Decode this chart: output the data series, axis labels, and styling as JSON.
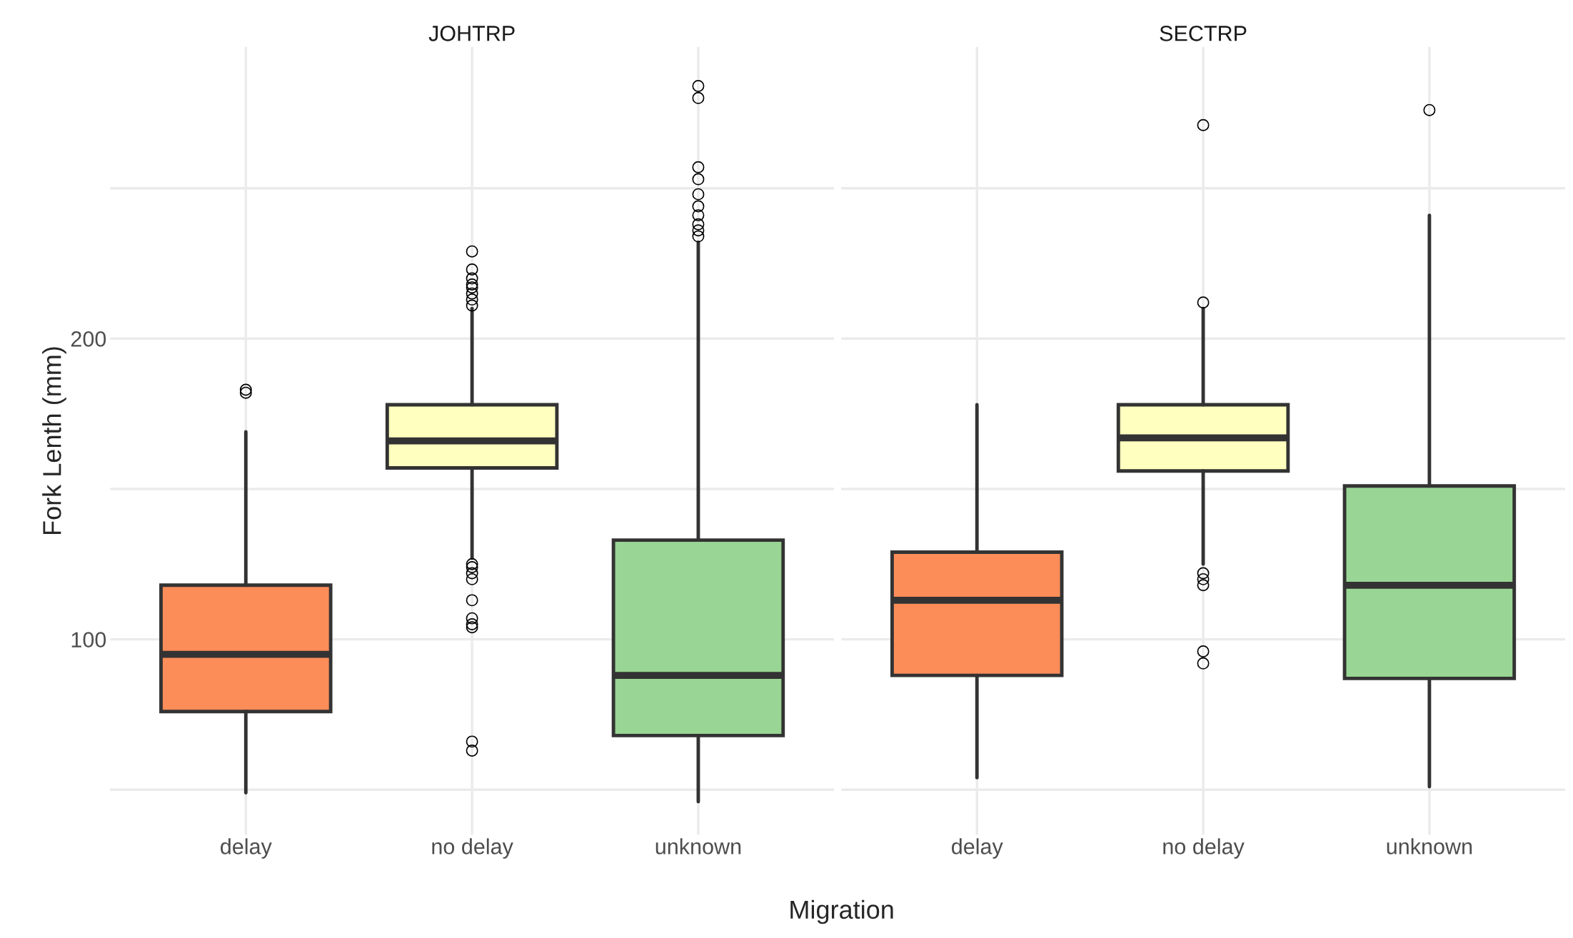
{
  "chart_data": [
    {
      "type": "box",
      "title": "JOHTRP",
      "xlabel": "Migration",
      "ylabel": "Fork Lenth (mm)",
      "categories": [
        "delay",
        "no delay",
        "unknown"
      ],
      "colors": [
        "#fc8d59",
        "#ffffbf",
        "#99d594"
      ],
      "boxes": [
        {
          "low": 49,
          "q1": 76,
          "median": 95,
          "q3": 118,
          "high": 169,
          "outliers": [
            183,
            182
          ]
        },
        {
          "low": 127,
          "q1": 157,
          "median": 166,
          "q3": 178,
          "high": 210,
          "outliers": [
            229,
            223,
            220,
            218,
            217,
            215,
            213,
            211,
            125,
            124,
            122,
            120,
            113,
            107,
            105,
            104,
            66,
            63
          ]
        },
        {
          "low": 46,
          "q1": 68,
          "median": 88,
          "q3": 133,
          "high": 232,
          "outliers": [
            284,
            280,
            257,
            253,
            248,
            244,
            241,
            238,
            236,
            234
          ]
        }
      ],
      "ylim": [
        35,
        297
      ],
      "yticks": [
        {
          "value": 50,
          "label": null
        },
        100,
        {
          "value": 150,
          "label": null
        },
        200,
        {
          "value": 250,
          "label": null
        }
      ],
      "grid": true
    },
    {
      "type": "box",
      "title": "SECTRP",
      "categories": [
        "delay",
        "no delay",
        "unknown"
      ],
      "colors": [
        "#fc8d59",
        "#ffffbf",
        "#99d594"
      ],
      "boxes": [
        {
          "low": 54,
          "q1": 88,
          "median": 113,
          "q3": 129,
          "high": 178
        },
        {
          "low": 125,
          "q1": 156,
          "median": 167,
          "q3": 178,
          "high": 210,
          "outliers": [
            271,
            212,
            122,
            120,
            118,
            96,
            92
          ]
        },
        {
          "low": 51,
          "q1": 87,
          "median": 118,
          "q3": 151,
          "high": 241,
          "outliers": [
            276
          ]
        }
      ],
      "ylim": [
        35,
        297
      ],
      "yticks": [
        {
          "value": 50,
          "label": null
        },
        100,
        {
          "value": 150,
          "label": null
        },
        200,
        {
          "value": 250,
          "label": null
        }
      ],
      "grid": true,
      "tick_labels": "x"
    }
  ]
}
